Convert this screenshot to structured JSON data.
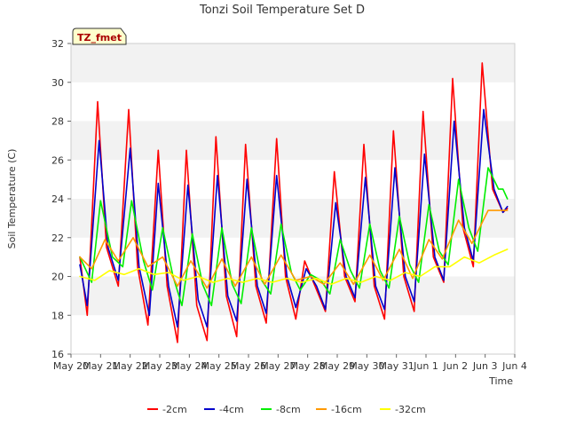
{
  "chart_data": {
    "type": "line",
    "title": "Tonzi Soil Temperature Set D",
    "xlabel": "Time",
    "ylabel": "Soil Temperature (C)",
    "ylim": [
      16,
      32
    ],
    "yticks": [
      16,
      18,
      20,
      22,
      24,
      26,
      28,
      30,
      32
    ],
    "xlim": [
      0,
      15
    ],
    "xtick_labels": [
      "May 20",
      "May 21",
      "May 22",
      "May 23",
      "May 24",
      "May 25",
      "May 26",
      "May 27",
      "May 28",
      "May 29",
      "May 30",
      "May 31",
      "Jun 1",
      "Jun 2",
      "Jun 3",
      "Jun 4"
    ],
    "badge": "TZ_fmet",
    "grid": "horizontal bands",
    "legend_position": "bottom",
    "series": [
      {
        "name": "-2cm",
        "color": "#ff0000",
        "x": [
          0.3,
          0.55,
          0.9,
          1.2,
          1.6,
          1.95,
          2.25,
          2.6,
          2.95,
          3.25,
          3.6,
          3.9,
          4.25,
          4.6,
          4.9,
          5.25,
          5.6,
          5.9,
          6.25,
          6.6,
          6.95,
          7.25,
          7.6,
          7.9,
          8.25,
          8.6,
          8.9,
          9.25,
          9.6,
          9.9,
          10.25,
          10.6,
          10.9,
          11.25,
          11.6,
          11.9,
          12.25,
          12.6,
          12.9,
          13.25,
          13.6,
          13.9,
          14.25,
          14.6,
          14.75
        ],
        "y": [
          21.0,
          18.0,
          29.0,
          21.5,
          19.5,
          28.6,
          20.5,
          17.5,
          26.5,
          19.5,
          16.6,
          26.5,
          18.5,
          16.7,
          27.2,
          19.0,
          16.9,
          26.8,
          19.5,
          17.6,
          27.1,
          20.0,
          17.8,
          20.8,
          19.5,
          18.2,
          25.4,
          20.0,
          18.7,
          26.8,
          19.5,
          17.8,
          27.5,
          20.0,
          18.2,
          28.5,
          21.0,
          19.7,
          30.2,
          22.5,
          20.5,
          31.0,
          24.5,
          23.3,
          23.5
        ]
      },
      {
        "name": "-4cm",
        "color": "#0000cc",
        "x": [
          0.3,
          0.55,
          0.95,
          1.25,
          1.6,
          2.0,
          2.3,
          2.65,
          2.95,
          3.3,
          3.6,
          3.95,
          4.3,
          4.6,
          4.95,
          5.3,
          5.6,
          5.95,
          6.3,
          6.6,
          6.95,
          7.3,
          7.6,
          7.95,
          8.3,
          8.6,
          8.95,
          9.3,
          9.6,
          9.95,
          10.3,
          10.6,
          10.95,
          11.3,
          11.6,
          11.95,
          12.3,
          12.6,
          12.95,
          13.3,
          13.6,
          13.95,
          14.3,
          14.6,
          14.75
        ],
        "y": [
          20.6,
          18.5,
          27.0,
          21.5,
          19.8,
          26.6,
          20.5,
          18.0,
          24.8,
          19.5,
          17.4,
          24.7,
          18.8,
          17.4,
          25.2,
          19.0,
          17.7,
          25.0,
          19.5,
          18.1,
          25.2,
          20.0,
          18.4,
          20.4,
          19.5,
          18.3,
          23.8,
          20.0,
          18.9,
          25.1,
          19.5,
          18.3,
          25.6,
          20.0,
          18.7,
          26.3,
          21.0,
          19.8,
          28.0,
          22.5,
          20.8,
          28.6,
          24.5,
          23.3,
          23.6
        ]
      },
      {
        "name": "-8cm",
        "color": "#00ee00",
        "x": [
          0.3,
          0.7,
          1.0,
          1.4,
          1.75,
          2.05,
          2.45,
          2.75,
          3.1,
          3.45,
          3.75,
          4.1,
          4.45,
          4.75,
          5.1,
          5.45,
          5.75,
          6.1,
          6.45,
          6.75,
          7.1,
          7.45,
          7.75,
          8.1,
          8.45,
          8.75,
          9.1,
          9.45,
          9.75,
          10.1,
          10.45,
          10.75,
          11.1,
          11.45,
          11.75,
          12.1,
          12.45,
          12.75,
          13.1,
          13.45,
          13.75,
          14.1,
          14.45,
          14.6,
          14.75
        ],
        "y": [
          21.0,
          19.7,
          23.9,
          21.0,
          20.5,
          23.9,
          20.8,
          19.3,
          22.5,
          20.0,
          18.5,
          22.2,
          19.6,
          18.5,
          22.5,
          19.6,
          18.6,
          22.5,
          19.8,
          19.1,
          22.7,
          20.2,
          19.3,
          20.1,
          19.8,
          19.1,
          21.9,
          20.3,
          19.4,
          22.7,
          20.3,
          19.4,
          23.1,
          20.6,
          19.7,
          23.7,
          21.3,
          20.6,
          25.0,
          22.5,
          21.3,
          25.6,
          24.5,
          24.5,
          24.0
        ]
      },
      {
        "name": "-16cm",
        "color": "#ff9900",
        "x": [
          0.3,
          0.7,
          1.15,
          1.6,
          2.1,
          2.6,
          3.1,
          3.6,
          4.05,
          4.6,
          5.1,
          5.55,
          6.1,
          6.55,
          7.1,
          7.6,
          8.1,
          8.55,
          9.1,
          9.55,
          10.1,
          10.55,
          11.1,
          11.55,
          12.1,
          12.55,
          13.1,
          13.55,
          14.1,
          14.55,
          14.75
        ],
        "y": [
          21.0,
          20.4,
          21.9,
          20.8,
          22.0,
          20.5,
          21.0,
          19.5,
          20.8,
          19.4,
          20.9,
          19.5,
          21.0,
          19.6,
          21.1,
          19.8,
          20.0,
          19.6,
          20.7,
          19.6,
          21.1,
          19.8,
          21.4,
          19.9,
          21.9,
          20.9,
          22.9,
          21.7,
          23.4,
          23.4,
          23.4
        ]
      },
      {
        "name": "-32cm",
        "color": "#ffff00",
        "x": [
          0.3,
          0.8,
          1.3,
          1.8,
          2.3,
          2.8,
          3.3,
          3.8,
          4.3,
          4.8,
          5.3,
          5.8,
          6.3,
          6.8,
          7.3,
          7.8,
          8.3,
          8.8,
          9.3,
          9.8,
          10.3,
          10.8,
          11.3,
          11.8,
          12.3,
          12.8,
          13.3,
          13.8,
          14.3,
          14.75
        ],
        "y": [
          20.0,
          19.8,
          20.3,
          20.1,
          20.4,
          20.1,
          20.2,
          19.8,
          20.0,
          19.7,
          19.9,
          19.7,
          19.9,
          19.7,
          19.9,
          19.7,
          19.9,
          19.6,
          19.9,
          19.7,
          20.0,
          19.8,
          20.2,
          20.0,
          20.5,
          20.5,
          21.0,
          20.7,
          21.1,
          21.4
        ]
      }
    ]
  }
}
